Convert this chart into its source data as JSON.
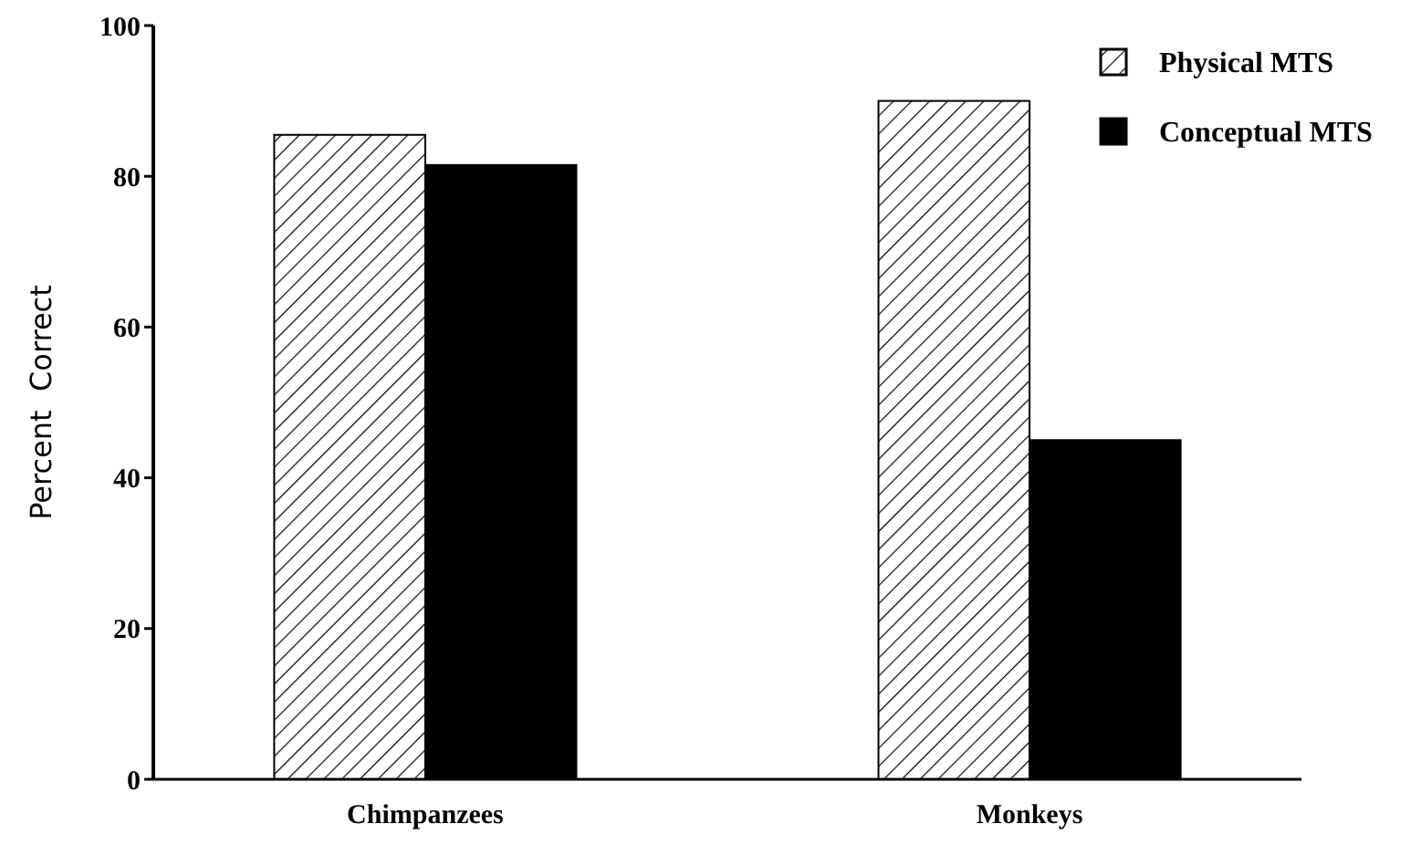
{
  "chart_data": {
    "type": "bar",
    "ylabel": "Percent  Correct",
    "categories": [
      "Chimpanzees",
      "Monkeys"
    ],
    "series": [
      {
        "name": "Physical MTS",
        "color": "#000000",
        "values": [
          85.5,
          90
        ]
      },
      {
        "name": "Conceptual MTS",
        "color": "#000000",
        "values": [
          81.5,
          45
        ]
      }
    ],
    "ylim": [
      0,
      100
    ],
    "yticks": [
      0,
      20,
      40,
      60,
      80,
      100
    ],
    "legend": "top right",
    "grid": false
  }
}
